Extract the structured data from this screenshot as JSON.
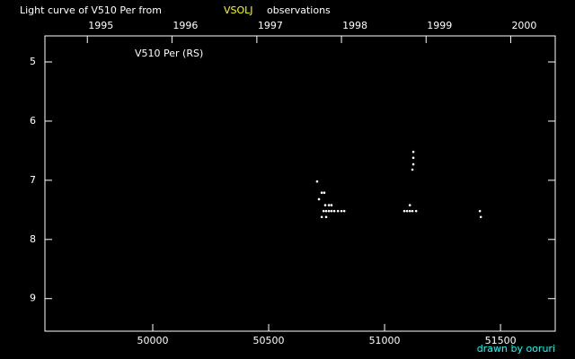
{
  "chart_data": {
    "type": "scatter",
    "title": "Light curve of V510 Per from",
    "source": "VSOLJ",
    "title_suffix": "observations",
    "plot_label": "V510 Per (RS)",
    "credit": "drawn by ooruri",
    "x": [
      50709,
      50717,
      50729,
      50740,
      50729,
      50744,
      50760,
      50771,
      50737,
      50748,
      50760,
      50771,
      50783,
      50799,
      50814,
      50826,
      50748,
      51124,
      51124,
      51124,
      51120,
      51109,
      51085,
      51097,
      51109,
      51120,
      51136,
      51411,
      51415
    ],
    "series": [
      {
        "name": "V510 Per",
        "color": "#ffffff",
        "values": [
          7.02,
          7.32,
          7.21,
          7.21,
          7.62,
          7.42,
          7.42,
          7.42,
          7.52,
          7.52,
          7.52,
          7.52,
          7.52,
          7.52,
          7.52,
          7.52,
          7.62,
          6.52,
          6.62,
          6.73,
          6.82,
          7.42,
          7.52,
          7.52,
          7.52,
          7.52,
          7.52,
          7.52,
          7.62
        ]
      }
    ],
    "xlim": [
      49535,
      51736
    ],
    "xticks": [
      50000,
      50500,
      51000,
      51500
    ],
    "x2ticks": [
      {
        "value": 49718,
        "label": "1995"
      },
      {
        "value": 50083,
        "label": "1996"
      },
      {
        "value": 50449,
        "label": "1997"
      },
      {
        "value": 50814,
        "label": "1998"
      },
      {
        "value": 51179,
        "label": "1999"
      },
      {
        "value": 51544,
        "label": "2000"
      }
    ],
    "ylim": [
      4.56,
      9.55
    ],
    "yticks": [
      5,
      6,
      7,
      8,
      9
    ],
    "y_inverted": true,
    "source_color": "#ffff00",
    "credit_color": "#00ffff",
    "axis_color": "#ffffff"
  }
}
